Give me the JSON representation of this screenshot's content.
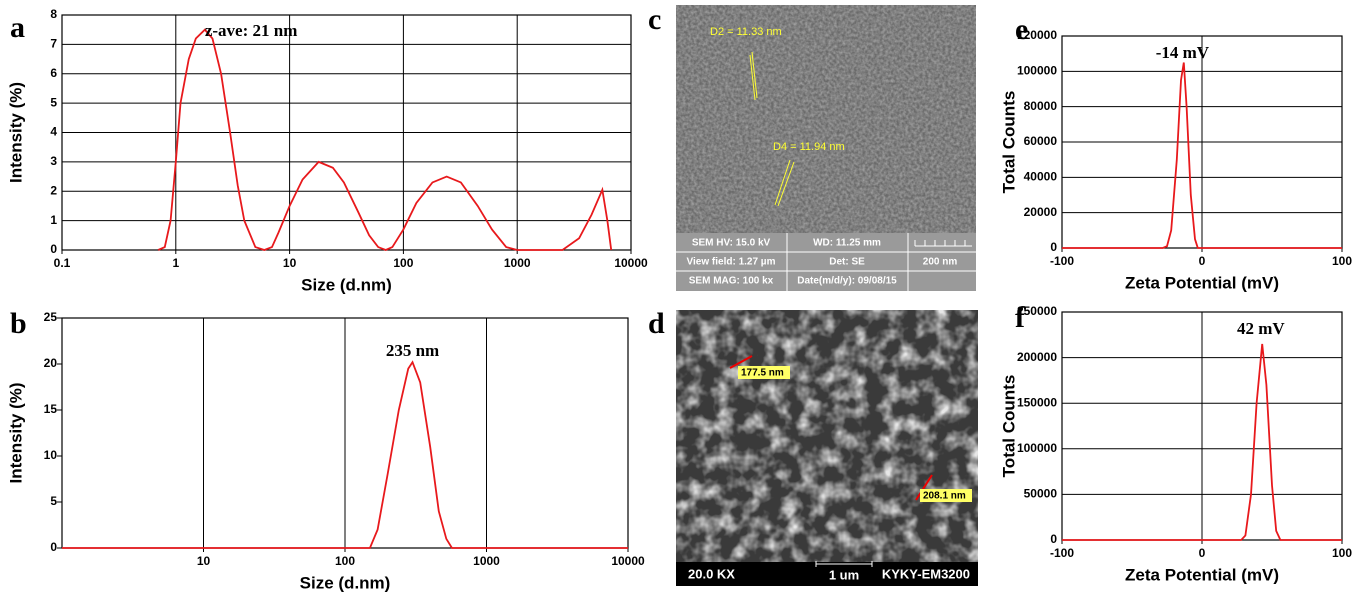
{
  "chart_data": [
    {
      "type": "line",
      "label": "a",
      "annotation": "z-ave: 21 nm",
      "xlabel": "Size (d.nm)",
      "ylabel": "Intensity (%)",
      "xscale": "log",
      "xlim": [
        0.1,
        10000
      ],
      "xticks": [
        0.1,
        1,
        10,
        100,
        1000,
        10000
      ],
      "ylim": [
        0,
        8
      ],
      "yticks": [
        0,
        1,
        2,
        3,
        4,
        5,
        6,
        7,
        8
      ],
      "grid": "both",
      "color": "#e8191c",
      "x": [
        0.7,
        0.8,
        0.9,
        1.0,
        1.1,
        1.3,
        1.5,
        1.8,
        2.1,
        2.5,
        3,
        3.5,
        4,
        5,
        6,
        7,
        8,
        10,
        13,
        18,
        24,
        30,
        40,
        50,
        60,
        70,
        80,
        100,
        130,
        180,
        240,
        320,
        450,
        600,
        800,
        1000,
        2500,
        3500,
        4500,
        5600,
        6200,
        6700
      ],
      "values": [
        0,
        0.1,
        1,
        3,
        5,
        6.5,
        7.2,
        7.5,
        7.2,
        6,
        4,
        2.2,
        1,
        0.1,
        0,
        0.1,
        0.6,
        1.5,
        2.4,
        3,
        2.8,
        2.3,
        1.3,
        0.5,
        0.1,
        0,
        0.1,
        0.7,
        1.6,
        2.3,
        2.5,
        2.3,
        1.5,
        0.7,
        0.1,
        0,
        0,
        0.4,
        1.2,
        2.05,
        1.0,
        0
      ]
    },
    {
      "type": "line",
      "label": "b",
      "annotation": "235 nm",
      "xlabel": "Size (d.nm)",
      "ylabel": "Intensity (%)",
      "xscale": "log",
      "xlim": [
        1,
        10000
      ],
      "xticks": [
        10,
        100,
        1000,
        10000
      ],
      "ylim": [
        0,
        25
      ],
      "yticks": [
        0,
        5,
        10,
        15,
        20,
        25
      ],
      "grid": "x",
      "color": "#e8191c",
      "x": [
        1,
        150,
        170,
        200,
        240,
        280,
        300,
        340,
        400,
        460,
        520,
        570,
        10000
      ],
      "values": [
        0,
        0,
        2,
        8,
        15,
        19.5,
        20.2,
        18,
        11,
        4,
        1,
        0,
        0
      ]
    },
    {
      "type": "line",
      "label": "e",
      "annotation": "-14 mV",
      "xlabel": "Zeta Potential (mV)",
      "ylabel": "Total Counts",
      "xscale": "linear",
      "xlim": [
        -100,
        100
      ],
      "xticks": [
        -100,
        0,
        100
      ],
      "ylim": [
        0,
        120000
      ],
      "yticks": [
        0,
        20000,
        40000,
        60000,
        80000,
        100000,
        120000
      ],
      "grid": "both",
      "color": "#e8191c",
      "x": [
        -100,
        -28,
        -25,
        -22,
        -18,
        -15,
        -13,
        -11,
        -8,
        -5,
        -3,
        100
      ],
      "values": [
        0,
        0,
        1000,
        10000,
        50000,
        95000,
        105000,
        80000,
        30000,
        5000,
        0,
        0
      ]
    },
    {
      "type": "line",
      "label": "f",
      "annotation": "42 mV",
      "xlabel": "Zeta Potential (mV)",
      "ylabel": "Total Counts",
      "xscale": "linear",
      "xlim": [
        -100,
        100
      ],
      "xticks": [
        -100,
        0,
        100
      ],
      "ylim": [
        0,
        250000
      ],
      "yticks": [
        0,
        50000,
        100000,
        150000,
        200000,
        250000
      ],
      "grid": "both",
      "color": "#e8191c",
      "x": [
        -100,
        28,
        31,
        35,
        39,
        43,
        46,
        50,
        53,
        56,
        100
      ],
      "values": [
        0,
        0,
        5000,
        50000,
        150000,
        215000,
        170000,
        60000,
        10000,
        0,
        0
      ]
    }
  ],
  "images": [
    {
      "label": "c",
      "measures": [
        "D2 = 11.33 nm",
        "D4 = 11.94 nm"
      ],
      "info": [
        [
          "SEM HV: 15.0 kV",
          "WD: 11.25 mm",
          ""
        ],
        [
          "View field: 1.27 µm",
          "Det: SE",
          "200 nm"
        ],
        [
          "SEM MAG: 100 kx",
          "Date(m/d/y): 09/08/15",
          ""
        ]
      ]
    },
    {
      "label": "d",
      "measures": [
        "177.5 nm",
        "208.1 nm"
      ],
      "footer": [
        "20.0 KX",
        "1 um",
        "KYKY-EM3200"
      ]
    }
  ]
}
